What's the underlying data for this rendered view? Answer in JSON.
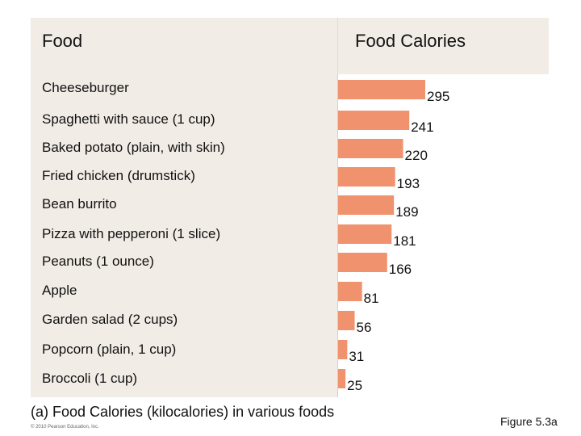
{
  "header": {
    "food": "Food",
    "calories": "Food Calories"
  },
  "chart_data": {
    "type": "bar",
    "orientation": "horizontal",
    "title": "Food Calories",
    "categories": [
      "Cheeseburger",
      "Spaghetti with sauce (1 cup)",
      "Baked potato (plain, with skin)",
      "Fried chicken (drumstick)",
      "Bean burrito",
      "Pizza with pepperoni (1 slice)",
      "Peanuts (1 ounce)",
      "Apple",
      "Garden salad (2 cups)",
      "Popcorn (plain, 1 cup)",
      "Broccoli (1 cup)"
    ],
    "values": [
      295,
      241,
      220,
      193,
      189,
      181,
      166,
      81,
      56,
      31,
      25
    ],
    "xlabel": "",
    "ylabel": "",
    "xlim": [
      0,
      300
    ],
    "bar_color": "#f0926e"
  },
  "caption": "(a) Food Calories (kilocalories) in various foods",
  "copyright": "© 2010 Pearson Education, Inc.",
  "figure_ref": "Figure 5.3a"
}
